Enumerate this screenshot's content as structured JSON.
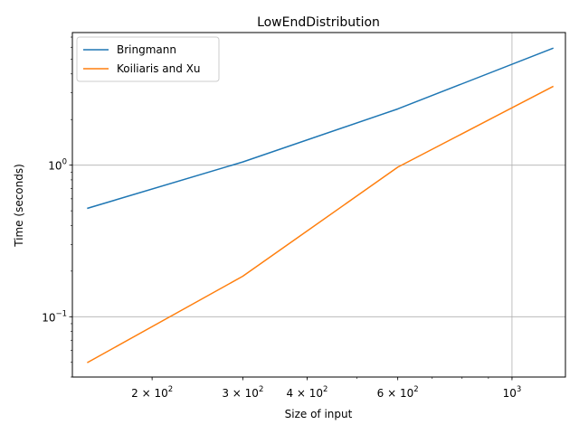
{
  "chart_data": {
    "type": "line",
    "title": "LowEndDistribution",
    "xlabel": "Size of input",
    "ylabel": "Time (seconds)",
    "xscale": "log",
    "yscale": "log",
    "xlim": [
      140,
      1270
    ],
    "ylim": [
      0.04,
      7.5
    ],
    "grid": "major ticks only",
    "legend_position": "upper-left",
    "x_ticks": [
      {
        "value": 200,
        "base": "2 × 10",
        "exp": "2"
      },
      {
        "value": 300,
        "base": "3 × 10",
        "exp": "2"
      },
      {
        "value": 400,
        "base": "4 × 10",
        "exp": "2"
      },
      {
        "value": 600,
        "base": "6 × 10",
        "exp": "2"
      },
      {
        "value": 1000,
        "base": "10",
        "exp": "3"
      }
    ],
    "y_ticks": [
      {
        "value": 0.1,
        "base": "10",
        "exp": "−1"
      },
      {
        "value": 1,
        "base": "10",
        "exp": "0"
      }
    ],
    "x_grid": [
      1000
    ],
    "y_grid": [
      0.1,
      1
    ],
    "series": [
      {
        "name": "Bringmann",
        "color": "#1f77b4",
        "x": [
          150,
          300,
          600,
          1200
        ],
        "y": [
          0.52,
          1.05,
          2.35,
          5.9
        ]
      },
      {
        "name": "Koiliaris and Xu",
        "color": "#ff7f0e",
        "x": [
          150,
          300,
          600,
          1200
        ],
        "y": [
          0.05,
          0.185,
          0.97,
          3.3
        ]
      }
    ]
  }
}
